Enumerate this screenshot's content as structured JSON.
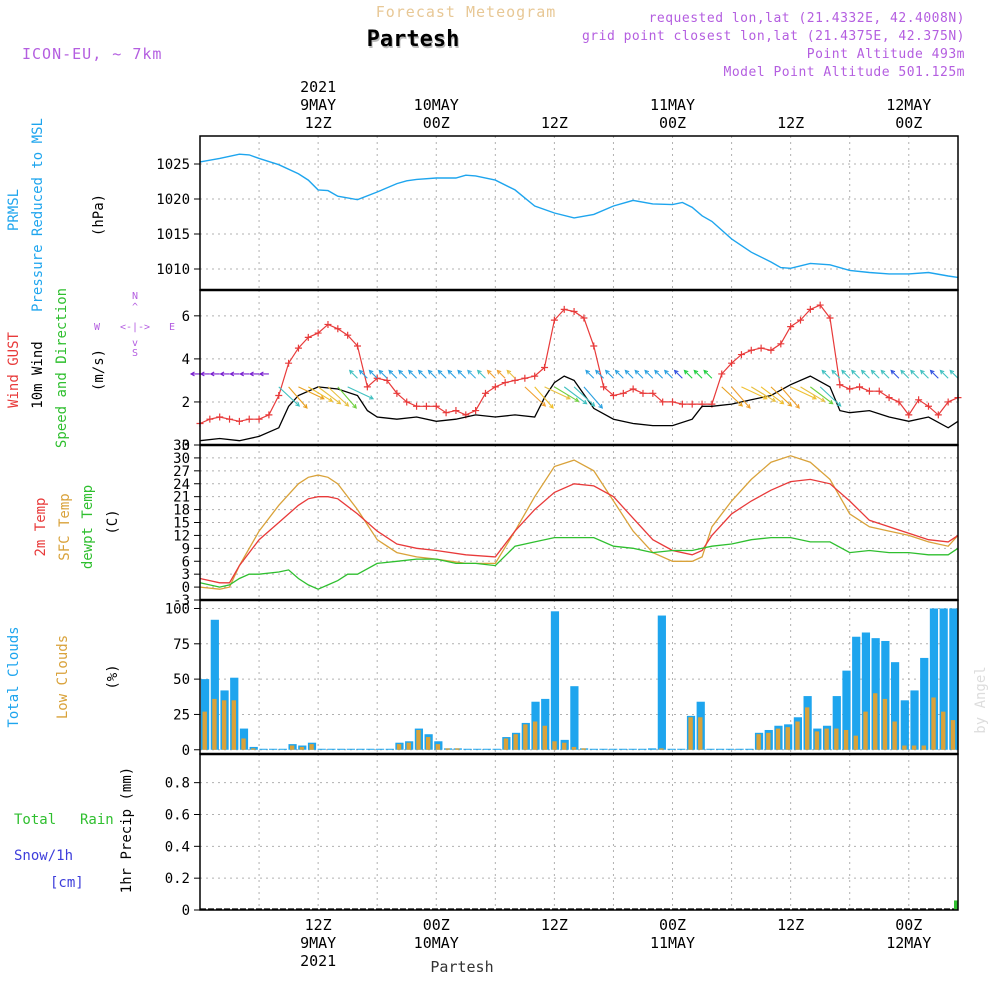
{
  "header": {
    "title_top": "Forecast Meteogram",
    "location": "Partesh",
    "model": "ICON-EU, ~ 7km",
    "requested": "requested lon,lat (21.4332E, 42.4008N)",
    "grid_point": "grid point closest lon,lat (21.4375E, 42.375N)",
    "point_altitude": "Point Altitude 493m",
    "model_altitude": "Model Point Altitude 501.125m",
    "footer_location": "Partesh",
    "watermark": "by Angel"
  },
  "colors": {
    "pressure": "#1ea5ee",
    "temp": "#e83a3a",
    "sfc": "#d9a23a",
    "dewpt": "#2fbf2f",
    "gust": "#e83a3a",
    "wind": "#000000",
    "clouds_total": "#1ea5ee",
    "clouds_low": "#d9a23a",
    "rain": "#2fbf2f",
    "snow": "#3d3ddb",
    "purple": "#b45ee0"
  },
  "time_axis": {
    "top_ticks": [
      {
        "hour": 12,
        "lines": [
          "2021",
          "9MAY",
          "12Z"
        ]
      },
      {
        "hour": 24,
        "lines": [
          "10MAY",
          "00Z"
        ]
      },
      {
        "hour": 36,
        "lines": [
          "12Z"
        ]
      },
      {
        "hour": 48,
        "lines": [
          "11MAY",
          "00Z"
        ]
      },
      {
        "hour": 60,
        "lines": [
          "12Z"
        ]
      },
      {
        "hour": 72,
        "lines": [
          "12MAY",
          "00Z"
        ]
      }
    ],
    "bottom_ticks": [
      {
        "hour": 12,
        "lines": [
          "12Z",
          "9MAY",
          "2021"
        ]
      },
      {
        "hour": 24,
        "lines": [
          "00Z",
          "10MAY"
        ]
      },
      {
        "hour": 36,
        "lines": [
          "12Z"
        ]
      },
      {
        "hour": 48,
        "lines": [
          "00Z",
          "11MAY"
        ]
      },
      {
        "hour": 60,
        "lines": [
          "12Z"
        ]
      },
      {
        "hour": 72,
        "lines": [
          "00Z",
          "12MAY"
        ]
      }
    ]
  },
  "chart_data": [
    {
      "type": "line",
      "name": "pressure",
      "labels": [
        "PRMSL",
        "Pressure Reduced to MSL",
        "(hPa)"
      ],
      "ylim": [
        1007,
        1029
      ],
      "yticks": [
        1010,
        1015,
        1020,
        1025
      ],
      "x": [
        0,
        2,
        4,
        5,
        6,
        8,
        10,
        11,
        12,
        13,
        14,
        16,
        18,
        20,
        21,
        22,
        24,
        26,
        27,
        28,
        30,
        32,
        34,
        36,
        38,
        40,
        42,
        44,
        46,
        48,
        49,
        50,
        51,
        52,
        54,
        56,
        58,
        59,
        60,
        62,
        64,
        66,
        68,
        70,
        72,
        74,
        76,
        77
      ],
      "values": [
        1025.3,
        1025.8,
        1026.4,
        1026.3,
        1025.8,
        1024.9,
        1023.6,
        1022.7,
        1021.3,
        1021.2,
        1020.4,
        1019.9,
        1021.0,
        1022.2,
        1022.6,
        1022.8,
        1023.0,
        1023.0,
        1023.4,
        1023.3,
        1022.7,
        1021.3,
        1019.0,
        1018.0,
        1017.3,
        1017.8,
        1019.0,
        1019.8,
        1019.3,
        1019.2,
        1019.5,
        1018.8,
        1017.6,
        1016.8,
        1014.3,
        1012.4,
        1011.0,
        1010.2,
        1010.1,
        1010.8,
        1010.6,
        1009.8,
        1009.5,
        1009.3,
        1009.3,
        1009.5,
        1009.0,
        1008.8
      ]
    },
    {
      "type": "line",
      "name": "wind",
      "labels": [
        "Wind GUST",
        "10m Wind",
        "Speed and Direction",
        "(m/s)"
      ],
      "compass": [
        "N",
        "S",
        "W",
        "E",
        "<-|->",
        "^",
        "v"
      ],
      "ylim": [
        0,
        7.2
      ],
      "yticks": [
        0,
        2,
        4,
        6
      ],
      "series": [
        {
          "name": "Wind GUST",
          "x": [
            0,
            1,
            2,
            3,
            4,
            5,
            6,
            7,
            8,
            9,
            10,
            11,
            12,
            13,
            14,
            15,
            16,
            17,
            18,
            19,
            20,
            21,
            22,
            23,
            24,
            25,
            26,
            27,
            28,
            29,
            30,
            31,
            32,
            33,
            34,
            35,
            36,
            37,
            38,
            39,
            40,
            41,
            42,
            43,
            44,
            45,
            46,
            47,
            48,
            49,
            50,
            51,
            52,
            53,
            54,
            55,
            56,
            57,
            58,
            59,
            60,
            61,
            62,
            63,
            64,
            65,
            66,
            67,
            68,
            69,
            70,
            71,
            72,
            73,
            74,
            75,
            76,
            77
          ],
          "values": [
            1.0,
            1.2,
            1.3,
            1.2,
            1.1,
            1.2,
            1.2,
            1.4,
            2.3,
            3.8,
            4.5,
            5.0,
            5.2,
            5.6,
            5.4,
            5.1,
            4.6,
            2.7,
            3.1,
            3.0,
            2.4,
            2.0,
            1.8,
            1.8,
            1.8,
            1.5,
            1.6,
            1.4,
            1.6,
            2.4,
            2.7,
            2.9,
            3.0,
            3.1,
            3.2,
            3.6,
            5.8,
            6.3,
            6.2,
            5.9,
            4.6,
            2.7,
            2.3,
            2.4,
            2.6,
            2.4,
            2.4,
            2.0,
            2.0,
            1.9,
            1.9,
            1.9,
            1.9,
            3.3,
            3.8,
            4.2,
            4.4,
            4.5,
            4.4,
            4.7,
            5.5,
            5.8,
            6.3,
            6.5,
            5.9,
            2.8,
            2.6,
            2.7,
            2.5,
            2.5,
            2.2,
            2.0,
            1.4,
            2.1,
            1.8,
            1.4,
            2.0,
            2.2
          ]
        },
        {
          "name": "10m Wind",
          "x": [
            0,
            2,
            4,
            6,
            8,
            9,
            10,
            12,
            14,
            16,
            17,
            18,
            20,
            22,
            24,
            26,
            28,
            30,
            32,
            34,
            35,
            36,
            37,
            38,
            40,
            42,
            44,
            46,
            48,
            50,
            51,
            52,
            54,
            56,
            58,
            60,
            62,
            64,
            65,
            66,
            68,
            70,
            72,
            74,
            76,
            77
          ],
          "values": [
            0.2,
            0.3,
            0.2,
            0.4,
            0.8,
            1.8,
            2.3,
            2.7,
            2.6,
            2.3,
            1.6,
            1.3,
            1.2,
            1.3,
            1.1,
            1.2,
            1.4,
            1.3,
            1.4,
            1.3,
            2.2,
            2.9,
            3.2,
            3.0,
            1.7,
            1.2,
            1.0,
            0.9,
            0.9,
            1.2,
            1.8,
            1.8,
            1.9,
            2.1,
            2.3,
            2.8,
            3.2,
            2.7,
            1.6,
            1.5,
            1.6,
            1.3,
            1.1,
            1.3,
            0.8,
            1.1
          ]
        }
      ]
    },
    {
      "type": "line",
      "name": "temperature",
      "labels": [
        "2m Temp",
        "SFC Temp",
        "dewpt Temp",
        "(C)"
      ],
      "ylim": [
        -3,
        33
      ],
      "yticks": [
        -3,
        0,
        3,
        6,
        9,
        12,
        15,
        18,
        21,
        24,
        27,
        30,
        33
      ],
      "series": [
        {
          "name": "2m Temp",
          "x": [
            0,
            2,
            3,
            4,
            6,
            8,
            10,
            11,
            12,
            13,
            14,
            16,
            18,
            20,
            22,
            24,
            27,
            30,
            32,
            34,
            36,
            38,
            40,
            42,
            44,
            46,
            48,
            50,
            51,
            52,
            54,
            56,
            58,
            60,
            62,
            64,
            66,
            68,
            70,
            72,
            74,
            76,
            77
          ],
          "values": [
            2,
            1,
            1,
            5,
            11,
            15,
            19,
            20.5,
            21,
            21,
            20.5,
            17,
            13,
            10,
            9,
            8.5,
            7.5,
            7,
            13,
            18,
            22,
            24,
            23.5,
            21,
            16,
            11,
            8.5,
            7.5,
            8.5,
            12,
            17,
            20,
            22.5,
            24.5,
            25,
            24,
            20,
            15.5,
            14,
            12.5,
            11,
            10.5,
            12
          ]
        },
        {
          "name": "SFC Temp",
          "x": [
            0,
            2,
            3,
            4,
            6,
            8,
            10,
            11,
            12,
            13,
            14,
            16,
            18,
            20,
            22,
            24,
            27,
            30,
            32,
            34,
            36,
            38,
            40,
            42,
            44,
            46,
            48,
            50,
            51,
            52,
            54,
            56,
            58,
            60,
            62,
            64,
            66,
            68,
            70,
            72,
            74,
            76,
            77
          ],
          "values": [
            0,
            -0.5,
            0,
            5,
            13,
            19,
            24,
            25.5,
            26,
            25.5,
            24,
            18,
            11,
            8,
            7,
            6.5,
            5.5,
            5.5,
            13,
            21,
            28,
            29.5,
            27,
            20,
            13,
            8,
            6,
            6,
            7,
            14,
            20,
            25,
            29,
            30.5,
            29,
            25,
            17,
            14,
            13,
            12,
            10.5,
            9.5,
            12
          ]
        },
        {
          "name": "dewpt Temp",
          "x": [
            0,
            2,
            3,
            4,
            5,
            6,
            8,
            9,
            10,
            11,
            12,
            13,
            14,
            15,
            16,
            18,
            20,
            22,
            24,
            26,
            28,
            30,
            32,
            34,
            36,
            38,
            40,
            42,
            44,
            46,
            48,
            50,
            51,
            52,
            54,
            56,
            58,
            60,
            62,
            64,
            66,
            68,
            70,
            72,
            74,
            76,
            77
          ],
          "values": [
            1,
            0,
            0.5,
            2,
            3,
            3,
            3.5,
            4,
            2,
            0.5,
            -0.5,
            0.5,
            1.5,
            3,
            3,
            5.5,
            6,
            6.5,
            6.5,
            5.5,
            5.5,
            5,
            9.5,
            10.5,
            11.5,
            11.5,
            11.5,
            9.5,
            9,
            8,
            8.5,
            8.5,
            9,
            9.5,
            10,
            11,
            11.5,
            11.5,
            10.5,
            10.5,
            8,
            8.5,
            8,
            8,
            7.5,
            7.5,
            9
          ]
        }
      ]
    },
    {
      "type": "bar",
      "name": "clouds",
      "labels": [
        "Total Clouds",
        "Low Clouds",
        "(%)"
      ],
      "ylim": [
        -3,
        106
      ],
      "yticks": [
        0,
        25,
        50,
        75,
        100
      ],
      "x": [
        0,
        1,
        2,
        3,
        4,
        5,
        6,
        7,
        8,
        9,
        10,
        11,
        12,
        13,
        14,
        15,
        16,
        17,
        18,
        19,
        20,
        21,
        22,
        23,
        24,
        25,
        26,
        27,
        28,
        29,
        30,
        31,
        32,
        33,
        34,
        35,
        36,
        37,
        38,
        39,
        40,
        41,
        42,
        43,
        44,
        45,
        46,
        47,
        48,
        49,
        50,
        51,
        52,
        53,
        54,
        55,
        56,
        57,
        58,
        59,
        60,
        61,
        62,
        63,
        64,
        65,
        66,
        67,
        68,
        69,
        70,
        71,
        72,
        73,
        74,
        75,
        76,
        77
      ],
      "series": [
        {
          "name": "Total Clouds",
          "values": [
            50,
            92,
            42,
            51,
            15,
            2,
            0,
            0,
            0,
            4,
            3,
            5,
            0,
            0,
            0,
            0,
            0,
            0,
            0,
            0,
            5,
            6,
            15,
            11,
            6,
            1,
            1,
            0,
            0,
            0,
            0,
            9,
            12,
            19,
            34,
            36,
            98,
            7,
            45,
            1,
            0,
            0,
            0,
            0,
            0,
            0,
            1,
            95,
            0,
            0,
            24,
            34,
            0,
            0,
            0,
            0,
            0,
            12,
            14,
            17,
            18,
            23,
            38,
            15,
            17,
            38,
            56,
            80,
            83,
            79,
            77,
            62,
            35,
            42,
            65,
            100,
            100,
            100
          ]
        },
        {
          "name": "Low Clouds",
          "values": [
            27,
            36,
            35,
            35,
            8,
            1,
            0,
            0,
            0,
            3,
            2,
            4,
            0,
            0,
            0,
            0,
            0,
            0,
            0,
            0,
            4,
            5,
            14,
            9,
            4,
            1,
            1,
            0,
            0,
            0,
            0,
            8,
            11,
            18,
            20,
            17,
            6,
            5,
            2,
            1,
            0,
            0,
            0,
            0,
            0,
            0,
            0,
            1,
            0,
            0,
            23,
            23,
            0,
            0,
            0,
            0,
            0,
            11,
            12,
            15,
            16,
            20,
            30,
            13,
            15,
            15,
            14,
            10,
            27,
            40,
            36,
            20,
            3,
            3,
            3,
            37,
            27,
            21
          ]
        }
      ]
    },
    {
      "type": "bar",
      "name": "precipitation",
      "labels": [
        "Total",
        "Rain",
        "Snow/1h",
        "[cm]",
        "1hr Precip (mm)"
      ],
      "ylim": [
        0,
        0.98
      ],
      "yticks": [
        0,
        0.2,
        0.4,
        0.6,
        0.8
      ],
      "ytick_labels": [
        "0",
        "0.2",
        "0.4",
        "0.6",
        "0.8"
      ],
      "x": [
        77
      ],
      "series": [
        {
          "name": "Total Rain",
          "values": [
            0.06
          ]
        },
        {
          "name": "Snow/1h",
          "values": [
            0
          ]
        }
      ]
    }
  ]
}
